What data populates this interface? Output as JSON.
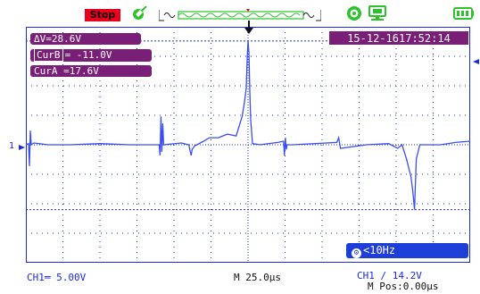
{
  "status": {
    "run_state": "Stop",
    "run_state_color": "#e8001c"
  },
  "icons": {
    "probe": "probe-icon",
    "memory_waveform": "memory-waveform-icon",
    "settings": "gear-icon",
    "usb": "usb-icon",
    "battery": "battery-icon"
  },
  "measurements": {
    "delta_v": "ΔV=28.6V",
    "cursor_b_label": "CurB",
    "cursor_b_value": "= -11.0V",
    "cursor_a": "CurA =17.6V"
  },
  "timestamp": "15-12-1617:52:14",
  "trigger_frequency": "<10Hz",
  "channel_marker": "1",
  "bottom": {
    "channel_scale": "CH1═ 5.00V",
    "timebase": "M 25.0µs",
    "trigger": "CH1 ∕ 14.2V",
    "position": "M Pos:0.00µs"
  },
  "colors": {
    "trace": "#3a4df0",
    "grid": "#1e2bd8",
    "readout_bg": "#7a1f77",
    "badge_bg": "#1e3ed8"
  },
  "chart_data": {
    "type": "line",
    "title": "",
    "xlabel": "",
    "ylabel": "",
    "x_unit": "µs",
    "y_unit": "V",
    "xlim": [
      -150,
      150
    ],
    "ylim": [
      -20,
      20
    ],
    "series": [
      {
        "x": [
          -150,
          -148.2,
          -147.6,
          -147,
          -146.4,
          -144.6,
          -135,
          -120,
          -100,
          -80,
          -60,
          -59.4,
          -58.8,
          -58.2,
          -57.6,
          -57,
          -45,
          -40,
          -39,
          -38.4,
          -37.8,
          -36,
          -30,
          -26,
          -20,
          -14,
          -8,
          -4,
          -2.4,
          -1.2,
          -0.6,
          0,
          0.6,
          1.2,
          1.8,
          3,
          8,
          20,
          24,
          24.6,
          25.2,
          25.8,
          26.4,
          30,
          60,
          61.2,
          62.4,
          80,
          95,
          101,
          104,
          107,
          110,
          111.2,
          112.4,
          113.6,
          116,
          130,
          140,
          150
        ],
        "y": [
          0,
          0.2,
          -3.6,
          2.4,
          0,
          0.3,
          0,
          0,
          0.2,
          0,
          0,
          -1.8,
          4.8,
          -1.2,
          3.6,
          0,
          0.3,
          0,
          -1.2,
          -1.8,
          -0.8,
          -0.2,
          0.6,
          1.2,
          1.2,
          1.8,
          1.5,
          4.8,
          7.2,
          9.6,
          14.4,
          17.6,
          15.6,
          9,
          4.2,
          0.2,
          0,
          0.4,
          0.6,
          -1.8,
          1.2,
          -0.8,
          0,
          0,
          0.4,
          1.2,
          -0.6,
          0,
          0.2,
          -0.6,
          0,
          -2.4,
          -5.4,
          -7.8,
          -11,
          -2.4,
          0,
          0,
          0.4,
          0.6
        ]
      }
    ],
    "reference_levels": [
      17.6,
      -11.0
    ]
  }
}
